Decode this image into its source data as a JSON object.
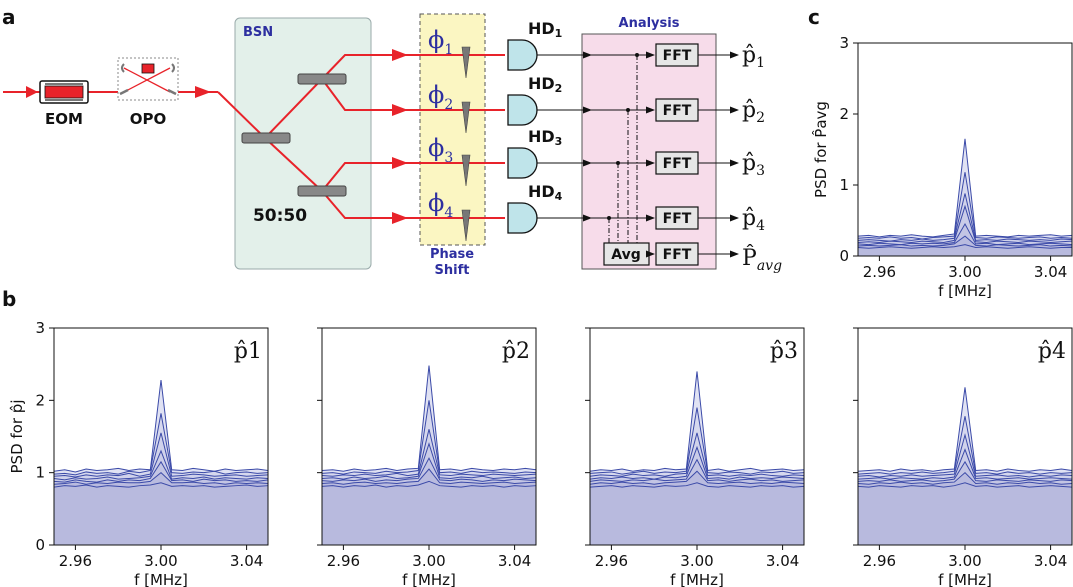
{
  "panel_letters": {
    "a": "a",
    "b": "b",
    "c": "c"
  },
  "diagram": {
    "eom": "EOM",
    "opo": "OPO",
    "bsn": "BSN",
    "splitter_ratio": "50:50",
    "phase_shift_line1": "Phase",
    "phase_shift_line2": "Shift",
    "analysis": "Analysis",
    "phases": [
      {
        "sym": "ϕ",
        "sub": "1"
      },
      {
        "sym": "ϕ",
        "sub": "2"
      },
      {
        "sym": "ϕ",
        "sub": "3"
      },
      {
        "sym": "ϕ",
        "sub": "4"
      }
    ],
    "detectors": [
      {
        "label": "HD",
        "sub": "1"
      },
      {
        "label": "HD",
        "sub": "2"
      },
      {
        "label": "HD",
        "sub": "3"
      },
      {
        "label": "HD",
        "sub": "4"
      }
    ],
    "fft": "FFT",
    "avg": "Avg",
    "outputs": [
      {
        "sym": "p̂",
        "sub": "1"
      },
      {
        "sym": "p̂",
        "sub": "2"
      },
      {
        "sym": "p̂",
        "sub": "3"
      },
      {
        "sym": "p̂",
        "sub": "4"
      },
      {
        "sym": "P̂",
        "sub": "avg"
      }
    ],
    "colors": {
      "beam": "#e8232a",
      "bsn_fill": "#e3f0ea",
      "phase_fill": "#fbf6c2",
      "analysis_fill": "#f7dcea",
      "detector_fill": "#bfe4ea",
      "label_blue": "#2d2fa0"
    }
  },
  "chart_data": [
    {
      "type": "area",
      "panel": "b",
      "title": "p̂1",
      "ylabel": "PSD for p̂j",
      "xlabel": "f [MHz]",
      "xlim": [
        2.95,
        3.05
      ],
      "ylim": [
        0,
        3
      ],
      "xticks": [
        "2.96",
        "3.00",
        "3.04"
      ],
      "yticks": [
        "0",
        "1",
        "2",
        "3"
      ],
      "x": [
        2.95,
        2.955,
        2.96,
        2.965,
        2.97,
        2.975,
        2.98,
        2.985,
        2.99,
        2.995,
        3.0,
        3.005,
        3.01,
        3.015,
        3.02,
        3.025,
        3.03,
        3.035,
        3.04,
        3.045,
        3.05
      ],
      "series": [
        {
          "values": [
            0.8,
            0.82,
            0.81,
            0.83,
            0.8,
            0.82,
            0.81,
            0.8,
            0.82,
            0.83,
            0.86,
            0.81,
            0.82,
            0.81,
            0.82,
            0.8,
            0.81,
            0.82,
            0.83,
            0.81,
            0.82
          ]
        },
        {
          "values": [
            0.84,
            0.85,
            0.87,
            0.84,
            0.86,
            0.85,
            0.87,
            0.86,
            0.86,
            0.88,
            1.0,
            0.86,
            0.86,
            0.87,
            0.85,
            0.86,
            0.84,
            0.86,
            0.85,
            0.86,
            0.85
          ]
        },
        {
          "values": [
            0.88,
            0.87,
            0.9,
            0.88,
            0.87,
            0.9,
            0.88,
            0.9,
            0.89,
            0.92,
            1.15,
            0.89,
            0.9,
            0.88,
            0.91,
            0.89,
            0.9,
            0.88,
            0.89,
            0.88,
            0.9
          ]
        },
        {
          "values": [
            0.92,
            0.9,
            0.93,
            0.91,
            0.92,
            0.94,
            0.91,
            0.92,
            0.93,
            0.95,
            1.3,
            0.91,
            0.93,
            0.92,
            0.94,
            0.91,
            0.93,
            0.92,
            0.91,
            0.93,
            0.92
          ]
        },
        {
          "values": [
            0.95,
            0.96,
            0.94,
            0.97,
            0.95,
            0.97,
            0.96,
            0.99,
            0.95,
            0.98,
            1.55,
            0.95,
            0.96,
            0.98,
            0.97,
            0.95,
            0.96,
            0.97,
            0.95,
            0.96,
            0.97
          ]
        },
        {
          "values": [
            0.98,
            0.99,
            0.97,
            1.01,
            0.99,
            1.0,
            0.98,
            1.02,
            1.0,
            1.03,
            1.82,
            1.0,
            0.99,
            1.01,
            1.0,
            1.02,
            0.98,
            1.0,
            1.01,
            0.99,
            1.0
          ]
        },
        {
          "values": [
            1.02,
            1.04,
            1.01,
            1.05,
            1.03,
            1.04,
            1.06,
            1.03,
            1.05,
            1.04,
            2.28,
            1.04,
            1.03,
            1.06,
            1.04,
            1.02,
            1.05,
            1.03,
            1.04,
            1.05,
            1.03
          ]
        }
      ]
    },
    {
      "type": "area",
      "panel": "b",
      "title": "p̂2",
      "xlabel": "f [MHz]",
      "xlim": [
        2.95,
        3.05
      ],
      "ylim": [
        0,
        3
      ],
      "xticks": [
        "2.96",
        "3.00",
        "3.04"
      ],
      "x": [
        2.95,
        2.955,
        2.96,
        2.965,
        2.97,
        2.975,
        2.98,
        2.985,
        2.99,
        2.995,
        3.0,
        3.005,
        3.01,
        3.015,
        3.02,
        3.025,
        3.03,
        3.035,
        3.04,
        3.045,
        3.05
      ],
      "series": [
        {
          "values": [
            0.81,
            0.82,
            0.8,
            0.82,
            0.81,
            0.83,
            0.8,
            0.82,
            0.81,
            0.83,
            0.88,
            0.82,
            0.81,
            0.8,
            0.82,
            0.81,
            0.82,
            0.8,
            0.82,
            0.81,
            0.82
          ]
        },
        {
          "values": [
            0.85,
            0.86,
            0.84,
            0.86,
            0.87,
            0.85,
            0.86,
            0.85,
            0.87,
            0.88,
            1.05,
            0.86,
            0.85,
            0.87,
            0.86,
            0.85,
            0.86,
            0.87,
            0.85,
            0.86,
            0.87
          ]
        },
        {
          "values": [
            0.89,
            0.88,
            0.9,
            0.89,
            0.91,
            0.88,
            0.9,
            0.89,
            0.91,
            0.92,
            1.2,
            0.9,
            0.89,
            0.91,
            0.9,
            0.88,
            0.9,
            0.89,
            0.91,
            0.9,
            0.89
          ]
        },
        {
          "values": [
            0.92,
            0.93,
            0.91,
            0.94,
            0.92,
            0.93,
            0.95,
            0.92,
            0.93,
            0.95,
            1.4,
            0.93,
            0.92,
            0.94,
            0.93,
            0.95,
            0.92,
            0.93,
            0.94,
            0.92,
            0.93
          ]
        },
        {
          "values": [
            0.96,
            0.95,
            0.97,
            0.96,
            0.98,
            0.96,
            0.97,
            0.99,
            0.96,
            0.98,
            1.6,
            0.97,
            0.96,
            0.98,
            0.97,
            0.96,
            0.98,
            0.97,
            0.96,
            0.97,
            0.98
          ]
        },
        {
          "values": [
            0.99,
            1.0,
            0.98,
            1.01,
            1.0,
            0.99,
            1.02,
            1.0,
            1.01,
            1.03,
            2.0,
            1.0,
            1.01,
            0.99,
            1.02,
            1.0,
            1.01,
            1.0,
            0.99,
            1.01,
            1.0
          ]
        },
        {
          "values": [
            1.03,
            1.04,
            1.02,
            1.05,
            1.03,
            1.04,
            1.06,
            1.03,
            1.05,
            1.06,
            2.48,
            1.04,
            1.05,
            1.03,
            1.06,
            1.04,
            1.03,
            1.05,
            1.04,
            1.06,
            1.04
          ]
        }
      ]
    },
    {
      "type": "area",
      "panel": "b",
      "title": "p̂3",
      "xlabel": "f [MHz]",
      "xlim": [
        2.95,
        3.05
      ],
      "ylim": [
        0,
        3
      ],
      "xticks": [
        "2.96",
        "3.00",
        "3.04"
      ],
      "x": [
        2.95,
        2.955,
        2.96,
        2.965,
        2.97,
        2.975,
        2.98,
        2.985,
        2.99,
        2.995,
        3.0,
        3.005,
        3.01,
        3.015,
        3.02,
        3.025,
        3.03,
        3.035,
        3.04,
        3.045,
        3.05
      ],
      "series": [
        {
          "values": [
            0.8,
            0.81,
            0.82,
            0.8,
            0.82,
            0.81,
            0.8,
            0.82,
            0.81,
            0.82,
            0.86,
            0.81,
            0.8,
            0.82,
            0.81,
            0.8,
            0.82,
            0.81,
            0.82,
            0.8,
            0.81
          ]
        },
        {
          "values": [
            0.84,
            0.86,
            0.85,
            0.87,
            0.85,
            0.86,
            0.84,
            0.86,
            0.87,
            0.88,
            1.02,
            0.86,
            0.85,
            0.86,
            0.87,
            0.85,
            0.86,
            0.85,
            0.87,
            0.86,
            0.85
          ]
        },
        {
          "values": [
            0.88,
            0.9,
            0.89,
            0.88,
            0.9,
            0.89,
            0.91,
            0.89,
            0.9,
            0.91,
            1.18,
            0.89,
            0.9,
            0.88,
            0.9,
            0.91,
            0.89,
            0.9,
            0.88,
            0.89,
            0.9
          ]
        },
        {
          "values": [
            0.91,
            0.93,
            0.92,
            0.94,
            0.92,
            0.93,
            0.91,
            0.94,
            0.93,
            0.95,
            1.35,
            0.92,
            0.93,
            0.91,
            0.94,
            0.92,
            0.93,
            0.92,
            0.94,
            0.93,
            0.92
          ]
        },
        {
          "values": [
            0.95,
            0.97,
            0.96,
            0.95,
            0.98,
            0.96,
            0.97,
            0.95,
            0.98,
            0.99,
            1.55,
            0.96,
            0.97,
            0.95,
            0.97,
            0.96,
            0.98,
            0.96,
            0.95,
            0.97,
            0.96
          ]
        },
        {
          "values": [
            0.99,
            1.0,
            1.01,
            0.98,
            1.0,
            1.02,
            0.99,
            1.01,
            1.0,
            1.02,
            1.9,
            1.0,
            0.99,
            1.01,
            1.0,
            0.98,
            1.01,
            1.0,
            1.02,
            0.99,
            1.0
          ]
        },
        {
          "values": [
            1.02,
            1.04,
            1.03,
            1.05,
            1.02,
            1.04,
            1.03,
            1.06,
            1.04,
            1.05,
            2.4,
            1.03,
            1.05,
            1.02,
            1.04,
            1.06,
            1.03,
            1.04,
            1.05,
            1.03,
            1.04
          ]
        }
      ]
    },
    {
      "type": "area",
      "panel": "b",
      "title": "p̂4",
      "xlabel": "f [MHz]",
      "xlim": [
        2.95,
        3.05
      ],
      "ylim": [
        0,
        3
      ],
      "xticks": [
        "2.96",
        "3.00",
        "3.04"
      ],
      "x": [
        2.95,
        2.955,
        2.96,
        2.965,
        2.97,
        2.975,
        2.98,
        2.985,
        2.99,
        2.995,
        3.0,
        3.005,
        3.01,
        3.015,
        3.02,
        3.025,
        3.03,
        3.035,
        3.04,
        3.045,
        3.05
      ],
      "series": [
        {
          "values": [
            0.81,
            0.8,
            0.82,
            0.81,
            0.8,
            0.82,
            0.81,
            0.82,
            0.8,
            0.82,
            0.86,
            0.81,
            0.82,
            0.8,
            0.81,
            0.82,
            0.8,
            0.81,
            0.82,
            0.81,
            0.8
          ]
        },
        {
          "values": [
            0.85,
            0.84,
            0.86,
            0.85,
            0.87,
            0.85,
            0.86,
            0.84,
            0.86,
            0.87,
            1.0,
            0.85,
            0.86,
            0.84,
            0.86,
            0.85,
            0.87,
            0.85,
            0.86,
            0.84,
            0.85
          ]
        },
        {
          "values": [
            0.88,
            0.89,
            0.88,
            0.9,
            0.88,
            0.89,
            0.9,
            0.88,
            0.89,
            0.91,
            1.15,
            0.89,
            0.88,
            0.9,
            0.89,
            0.88,
            0.9,
            0.89,
            0.88,
            0.9,
            0.89
          ]
        },
        {
          "values": [
            0.91,
            0.92,
            0.93,
            0.91,
            0.93,
            0.92,
            0.91,
            0.93,
            0.92,
            0.94,
            1.32,
            0.92,
            0.93,
            0.91,
            0.92,
            0.93,
            0.91,
            0.92,
            0.93,
            0.92,
            0.91
          ]
        },
        {
          "values": [
            0.95,
            0.96,
            0.94,
            0.96,
            0.95,
            0.97,
            0.95,
            0.96,
            0.97,
            0.98,
            1.52,
            0.95,
            0.96,
            0.97,
            0.95,
            0.96,
            0.94,
            0.96,
            0.95,
            0.97,
            0.96
          ]
        },
        {
          "values": [
            0.98,
            0.99,
            1.0,
            0.98,
            1.0,
            0.99,
            1.01,
            0.99,
            1.0,
            1.02,
            1.78,
            0.99,
            1.0,
            0.98,
            1.01,
            0.99,
            1.0,
            0.98,
            1.0,
            0.99,
            1.0
          ]
        },
        {
          "values": [
            1.02,
            1.03,
            1.04,
            1.02,
            1.05,
            1.03,
            1.04,
            1.02,
            1.04,
            1.05,
            2.18,
            1.03,
            1.04,
            1.02,
            1.05,
            1.03,
            1.02,
            1.04,
            1.03,
            1.05,
            1.03
          ]
        }
      ]
    },
    {
      "type": "area",
      "panel": "c",
      "ylabel": "PSD for P̂avg",
      "xlabel": "f [MHz]",
      "xlim": [
        2.95,
        3.05
      ],
      "ylim": [
        0,
        3
      ],
      "xticks": [
        "2.96",
        "3.00",
        "3.04"
      ],
      "yticks": [
        "0",
        "1",
        "2",
        "3"
      ],
      "x": [
        2.95,
        2.955,
        2.96,
        2.965,
        2.97,
        2.975,
        2.98,
        2.985,
        2.99,
        2.995,
        3.0,
        3.005,
        3.01,
        3.015,
        3.02,
        3.025,
        3.03,
        3.035,
        3.04,
        3.045,
        3.05
      ],
      "series": [
        {
          "values": [
            0.12,
            0.11,
            0.12,
            0.13,
            0.12,
            0.11,
            0.12,
            0.13,
            0.12,
            0.13,
            0.16,
            0.12,
            0.13,
            0.12,
            0.11,
            0.12,
            0.13,
            0.12,
            0.11,
            0.12,
            0.12
          ]
        },
        {
          "values": [
            0.14,
            0.15,
            0.14,
            0.15,
            0.16,
            0.14,
            0.15,
            0.14,
            0.15,
            0.17,
            0.28,
            0.15,
            0.14,
            0.16,
            0.15,
            0.14,
            0.15,
            0.16,
            0.14,
            0.15,
            0.14
          ]
        },
        {
          "values": [
            0.17,
            0.16,
            0.18,
            0.17,
            0.16,
            0.18,
            0.17,
            0.18,
            0.17,
            0.19,
            0.45,
            0.17,
            0.18,
            0.16,
            0.17,
            0.18,
            0.16,
            0.17,
            0.18,
            0.17,
            0.16
          ]
        },
        {
          "values": [
            0.19,
            0.2,
            0.19,
            0.21,
            0.2,
            0.19,
            0.21,
            0.2,
            0.19,
            0.22,
            0.7,
            0.2,
            0.19,
            0.21,
            0.2,
            0.19,
            0.21,
            0.2,
            0.19,
            0.2,
            0.21
          ]
        },
        {
          "values": [
            0.22,
            0.23,
            0.22,
            0.21,
            0.23,
            0.22,
            0.24,
            0.22,
            0.23,
            0.25,
            0.88,
            0.22,
            0.23,
            0.22,
            0.24,
            0.23,
            0.22,
            0.23,
            0.22,
            0.24,
            0.23
          ]
        },
        {
          "values": [
            0.25,
            0.26,
            0.25,
            0.27,
            0.25,
            0.26,
            0.24,
            0.26,
            0.27,
            0.28,
            1.18,
            0.26,
            0.25,
            0.27,
            0.26,
            0.25,
            0.26,
            0.27,
            0.25,
            0.26,
            0.25
          ]
        },
        {
          "values": [
            0.28,
            0.29,
            0.27,
            0.29,
            0.28,
            0.3,
            0.28,
            0.27,
            0.29,
            0.31,
            1.65,
            0.28,
            0.29,
            0.28,
            0.27,
            0.29,
            0.28,
            0.29,
            0.3,
            0.28,
            0.29
          ]
        }
      ]
    }
  ]
}
